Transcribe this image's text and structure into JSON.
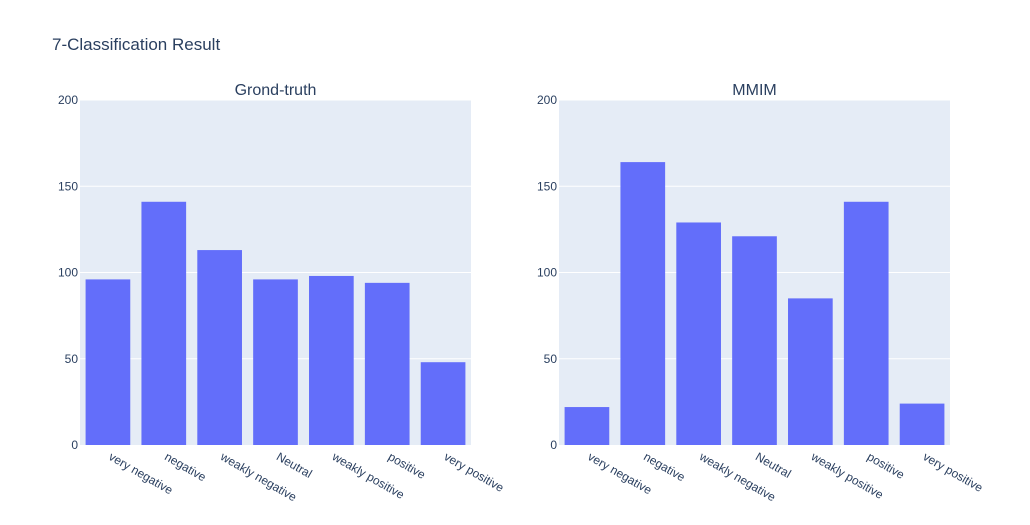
{
  "title": "7-Classification Result",
  "colors": {
    "bar": "#636efa",
    "plot_bg": "#e5ecf6",
    "grid": "#ffffff",
    "text": "#2a3f5f"
  },
  "chart_data": [
    {
      "type": "bar",
      "title": "Grond-truth",
      "categories": [
        "very negative",
        "negative",
        "weakly negative",
        "Neutral",
        "weakly positive",
        "positive",
        "very positive"
      ],
      "values": [
        96,
        141,
        113,
        96,
        98,
        94,
        48
      ],
      "ylim": [
        0,
        200
      ],
      "yticks": [
        0,
        50,
        100,
        150,
        200
      ],
      "grid": true
    },
    {
      "type": "bar",
      "title": "MMIM",
      "categories": [
        "very negative",
        "negative",
        "weakly negative",
        "Neutral",
        "weakly positive",
        "positive",
        "very positive"
      ],
      "values": [
        22,
        164,
        129,
        121,
        85,
        141,
        24
      ],
      "ylim": [
        0,
        200
      ],
      "yticks": [
        0,
        50,
        100,
        150,
        200
      ],
      "grid": true
    }
  ]
}
